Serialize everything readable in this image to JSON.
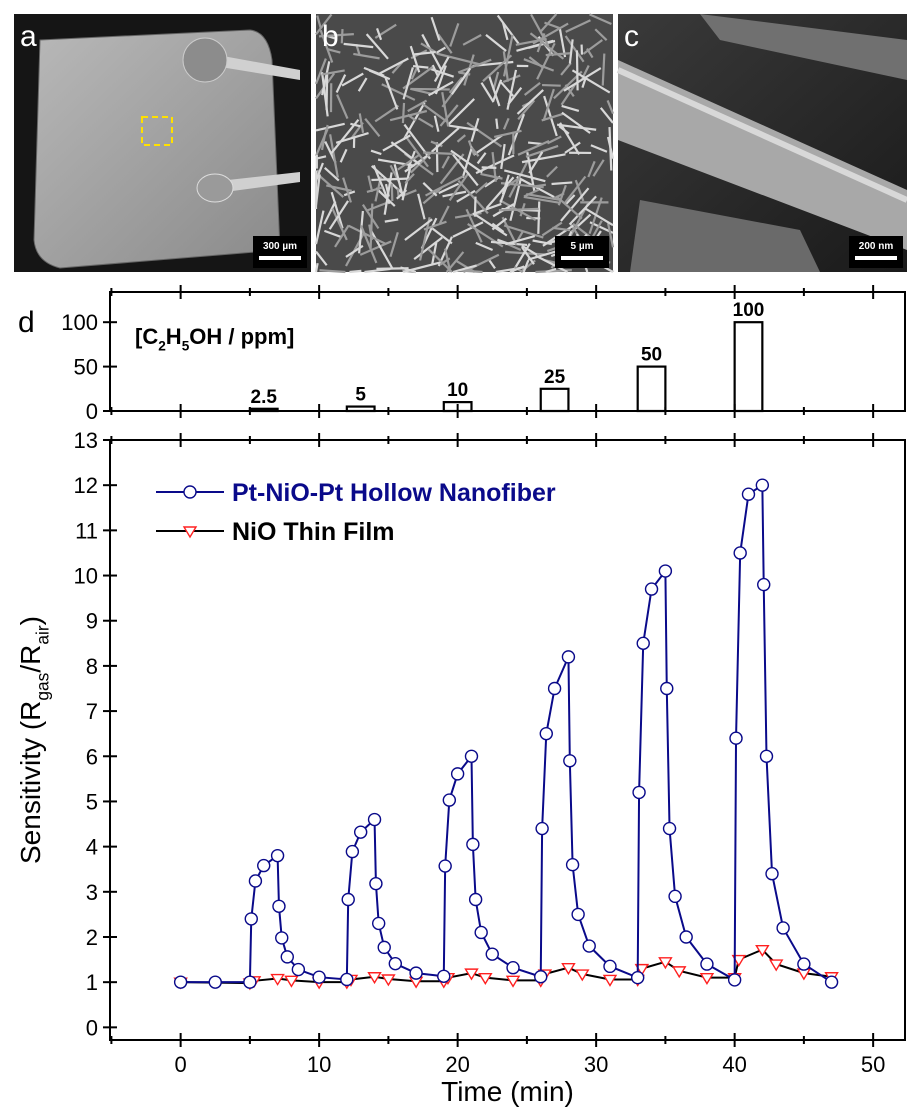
{
  "panels": [
    {
      "label": "a",
      "scale_bar": "300 µm"
    },
    {
      "label": "b",
      "scale_bar": "5 µm"
    },
    {
      "label": "c",
      "scale_bar": "200 nm"
    }
  ],
  "chart_data": [
    {
      "type": "pulse",
      "label": "d",
      "annotation_parts": [
        "[C",
        "2",
        "H",
        "5",
        "OH / ppm]"
      ],
      "x_start": [
        5,
        12,
        19,
        26,
        33,
        40
      ],
      "x_end": [
        7,
        14,
        21,
        28,
        35,
        42
      ],
      "values": [
        2.5,
        5,
        10,
        25,
        50,
        100
      ],
      "color": "#000000",
      "xlim": [
        -5.1,
        52.3
      ],
      "ylim": [
        0,
        134
      ],
      "yticks": [
        0,
        50,
        100
      ]
    },
    {
      "type": "line",
      "xlabel": "Time (min)",
      "ylabel_parts": [
        "Sensitivity (R",
        "gas",
        "/R",
        "air",
        ")"
      ],
      "xlim": [
        -5.1,
        52.3
      ],
      "ylim": [
        -0.28,
        13
      ],
      "xticks": [
        0,
        10,
        20,
        30,
        40,
        50
      ],
      "xticks_minor": [
        -5,
        5,
        15,
        25,
        35,
        45
      ],
      "yticks": [
        0,
        1,
        2,
        3,
        4,
        5,
        6,
        7,
        8,
        9,
        10,
        11,
        12,
        13
      ],
      "legend": "upper left",
      "series": [
        {
          "name": "NiO Thin Film",
          "color": "#000000",
          "marker_color": "#ff2020",
          "marker": "triangle-down",
          "name_color": "#000000",
          "x": [
            0,
            5,
            5.3,
            7,
            8,
            10,
            12,
            12.3,
            14,
            15,
            17,
            19,
            19.3,
            21,
            22,
            24,
            26,
            26.3,
            28,
            29,
            31,
            33,
            33.3,
            35,
            36,
            38,
            40,
            40.3,
            42,
            43,
            45,
            47
          ],
          "values": [
            1.0,
            0.98,
            1.03,
            1.08,
            1.04,
            1.0,
            1.0,
            1.06,
            1.12,
            1.07,
            1.02,
            1.02,
            1.1,
            1.2,
            1.1,
            1.04,
            1.04,
            1.18,
            1.32,
            1.18,
            1.06,
            1.06,
            1.3,
            1.45,
            1.25,
            1.1,
            1.1,
            1.5,
            1.72,
            1.4,
            1.2,
            1.12
          ]
        },
        {
          "name": "Pt-NiO-Pt Hollow Nanofiber",
          "color": "#0a0a8a",
          "marker_color": "#0a0a8a",
          "marker": "circle",
          "name_color": "#0a0a8a",
          "x": [
            0,
            2.5,
            5,
            5.1,
            5.4,
            6,
            7,
            7.1,
            7.3,
            7.7,
            8.5,
            10,
            12,
            12.1,
            12.4,
            13,
            14,
            14.1,
            14.3,
            14.7,
            15.5,
            17,
            19,
            19.1,
            19.4,
            20,
            21,
            21.1,
            21.3,
            21.7,
            22.5,
            24,
            26,
            26.1,
            26.4,
            27,
            28,
            28.1,
            28.3,
            28.7,
            29.5,
            31,
            33,
            33.1,
            33.4,
            34,
            35,
            35.1,
            35.3,
            35.7,
            36.5,
            38,
            40,
            40.1,
            40.4,
            41,
            42,
            42.1,
            42.3,
            42.7,
            43.5,
            45,
            47
          ],
          "values": [
            1.0,
            1.0,
            1.0,
            2.4,
            3.24,
            3.58,
            3.8,
            2.68,
            1.98,
            1.56,
            1.28,
            1.11,
            1.06,
            2.83,
            3.89,
            4.32,
            4.6,
            3.18,
            2.3,
            1.77,
            1.41,
            1.2,
            1.13,
            3.57,
            5.03,
            5.61,
            6.0,
            4.05,
            2.83,
            2.1,
            1.62,
            1.32,
            1.12,
            4.4,
            6.5,
            7.5,
            8.2,
            5.9,
            3.6,
            2.5,
            1.8,
            1.35,
            1.1,
            5.2,
            8.5,
            9.7,
            10.1,
            7.5,
            4.4,
            2.9,
            2.0,
            1.4,
            1.05,
            6.4,
            10.5,
            11.8,
            12.0,
            9.8,
            6.0,
            3.4,
            2.2,
            1.4,
            1.0
          ]
        }
      ]
    }
  ]
}
